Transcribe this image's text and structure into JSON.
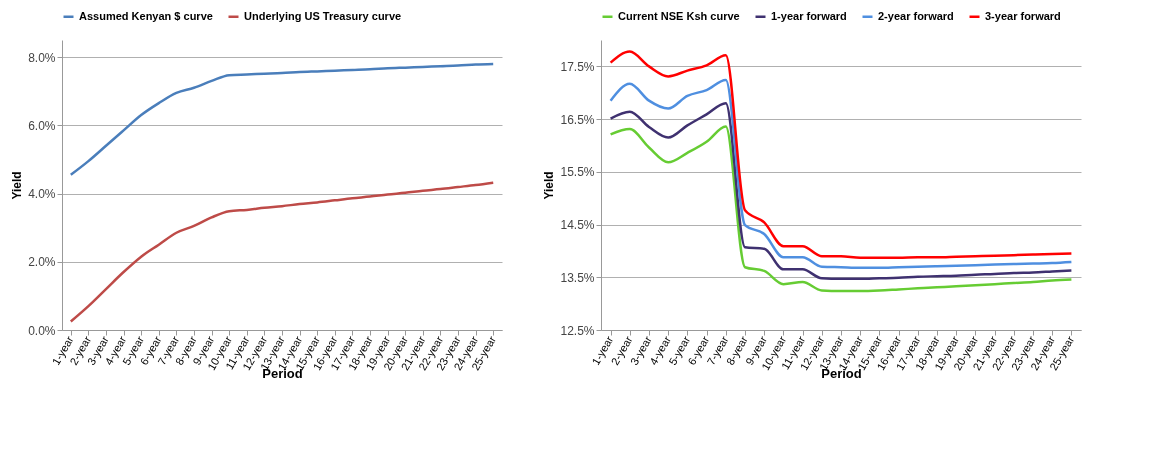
{
  "chart_data": [
    {
      "type": "line",
      "xlabel": "Period",
      "ylabel": "Yield",
      "legend": "top",
      "grid": "y",
      "line_style": "solid",
      "marker": "none",
      "categories": [
        "1-year",
        "2-year",
        "3-year",
        "4-year",
        "5-year",
        "6-year",
        "7-year",
        "8-year",
        "9-year",
        "10-year",
        "11-year",
        "12-year",
        "13-year",
        "14-year",
        "15-year",
        "16-year",
        "17-year",
        "18-year",
        "19-year",
        "20-year",
        "21-year",
        "22-year",
        "23-year",
        "24-year",
        "25-year"
      ],
      "ylim": [
        0,
        8.5
      ],
      "yticks": [
        {
          "value": 0,
          "label": "0.0%"
        },
        {
          "value": 2,
          "label": "2.0%"
        },
        {
          "value": 4,
          "label": "4.0%"
        },
        {
          "value": 6,
          "label": "6.0%"
        },
        {
          "value": 8,
          "label": "8.0%"
        }
      ],
      "series": [
        {
          "name": "Assumed Kenyan $ curve",
          "color": "#4a7ebb",
          "values": [
            4.55,
            4.95,
            5.4,
            5.85,
            6.3,
            6.65,
            6.95,
            7.1,
            7.3,
            7.47,
            7.49,
            7.51,
            7.53,
            7.56,
            7.58,
            7.6,
            7.62,
            7.64,
            7.67,
            7.69,
            7.71,
            7.73,
            7.75,
            7.78,
            7.8
          ]
        },
        {
          "name": "Underlying US Treasury curve",
          "color": "#be4b48",
          "values": [
            0.25,
            0.7,
            1.2,
            1.7,
            2.15,
            2.5,
            2.85,
            3.05,
            3.3,
            3.48,
            3.52,
            3.58,
            3.63,
            3.69,
            3.74,
            3.8,
            3.86,
            3.91,
            3.97,
            4.02,
            4.08,
            4.13,
            4.19,
            4.25,
            4.32
          ]
        }
      ]
    },
    {
      "type": "line",
      "xlabel": "Period",
      "ylabel": "Yield",
      "legend": "top",
      "grid": "y",
      "line_style": "solid",
      "marker": "none",
      "categories": [
        "1-year",
        "2-year",
        "3-year",
        "4-year",
        "5-year",
        "6-year",
        "7-year",
        "8-year",
        "9-year",
        "10-year",
        "11-year",
        "12-year",
        "13-year",
        "14-year",
        "15-year",
        "16-year",
        "17-year",
        "18-year",
        "19-year",
        "20-year",
        "21-year",
        "22-year",
        "23-year",
        "24-year",
        "25-year"
      ],
      "ylim": [
        12.5,
        18
      ],
      "yticks": [
        {
          "value": 12.5,
          "label": "12.5%"
        },
        {
          "value": 13.5,
          "label": "13.5%"
        },
        {
          "value": 14.5,
          "label": "14.5%"
        },
        {
          "value": 15.5,
          "label": "15.5%"
        },
        {
          "value": 16.5,
          "label": "16.5%"
        },
        {
          "value": 17.5,
          "label": "17.5%"
        }
      ],
      "series": [
        {
          "name": "Current NSE Ksh curve",
          "color": "#66cc33",
          "values": [
            16.21,
            16.31,
            15.96,
            15.68,
            15.86,
            16.07,
            16.36,
            13.69,
            13.62,
            13.37,
            13.41,
            13.25,
            13.24,
            13.24,
            13.25,
            13.27,
            13.29,
            13.31,
            13.33,
            13.35,
            13.37,
            13.39,
            13.41,
            13.44,
            13.46
          ]
        },
        {
          "name": "1-year forward",
          "color": "#3f3170",
          "values": [
            16.51,
            16.64,
            16.35,
            16.15,
            16.38,
            16.59,
            16.8,
            14.07,
            14.04,
            13.65,
            13.65,
            13.48,
            13.47,
            13.47,
            13.48,
            13.49,
            13.51,
            13.52,
            13.53,
            13.55,
            13.56,
            13.58,
            13.59,
            13.61,
            13.63
          ]
        },
        {
          "name": "2-year forward",
          "color": "#4f8fe0",
          "values": [
            16.85,
            17.17,
            16.85,
            16.7,
            16.94,
            17.05,
            17.24,
            14.49,
            14.32,
            13.88,
            13.88,
            13.7,
            13.69,
            13.68,
            13.68,
            13.69,
            13.7,
            13.71,
            13.72,
            13.73,
            13.74,
            13.75,
            13.76,
            13.77,
            13.79
          ]
        },
        {
          "name": "3-year forward",
          "color": "#ff0000",
          "values": [
            17.57,
            17.78,
            17.5,
            17.31,
            17.42,
            17.52,
            17.71,
            14.77,
            14.54,
            14.09,
            14.09,
            13.9,
            13.9,
            13.87,
            13.87,
            13.87,
            13.88,
            13.88,
            13.89,
            13.9,
            13.91,
            13.92,
            13.93,
            13.94,
            13.95
          ]
        }
      ]
    }
  ]
}
